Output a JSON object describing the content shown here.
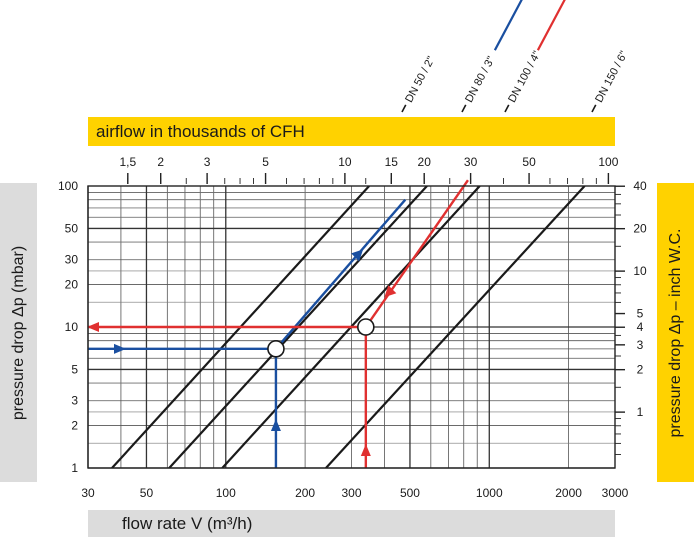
{
  "chart_data": {
    "type": "line",
    "top_axis_title": "airflow in thousands of CFH",
    "xlabel_prefix": "flow rate ",
    "xlabel_symbol": "V",
    "xlabel_suffix": " (m³/h)",
    "ylabel": "pressure drop Δp (mbar)",
    "ylabel_right": "pressure drop Δp – inch W.C.",
    "x_scale": "log",
    "y_scale": "log",
    "xlim": [
      30,
      3000
    ],
    "ylim": [
      1,
      100
    ],
    "x_ticks": [
      {
        "value": 30,
        "label": "30"
      },
      {
        "value": 50,
        "label": "50"
      },
      {
        "value": 100,
        "label": "100"
      },
      {
        "value": 200,
        "label": "200"
      },
      {
        "value": 300,
        "label": "300"
      },
      {
        "value": 500,
        "label": "500"
      },
      {
        "value": 1000,
        "label": "1000"
      },
      {
        "value": 2000,
        "label": "2000"
      },
      {
        "value": 3000,
        "label": "3000"
      }
    ],
    "y_ticks": [
      {
        "value": 1,
        "label": "1"
      },
      {
        "value": 2,
        "label": "2"
      },
      {
        "value": 3,
        "label": "3"
      },
      {
        "value": 5,
        "label": "5"
      },
      {
        "value": 10,
        "label": "10"
      },
      {
        "value": 20,
        "label": "20"
      },
      {
        "value": 30,
        "label": "30"
      },
      {
        "value": 50,
        "label": "50"
      },
      {
        "value": 100,
        "label": "100"
      }
    ],
    "top_ticks": [
      {
        "value": 1.5,
        "label": "1,5"
      },
      {
        "value": 2,
        "label": "2"
      },
      {
        "value": 3,
        "label": "3"
      },
      {
        "value": 5,
        "label": "5"
      },
      {
        "value": 10,
        "label": "10"
      },
      {
        "value": 15,
        "label": "15"
      },
      {
        "value": 20,
        "label": "20"
      },
      {
        "value": 30,
        "label": "30"
      },
      {
        "value": 50,
        "label": "50"
      },
      {
        "value": 100,
        "label": "100"
      }
    ],
    "right_ticks": [
      {
        "value": 1,
        "label": "1"
      },
      {
        "value": 2,
        "label": "2"
      },
      {
        "value": 3,
        "label": "3"
      },
      {
        "value": 4,
        "label": "4"
      },
      {
        "value": 5,
        "label": "5"
      },
      {
        "value": 10,
        "label": "10"
      },
      {
        "value": 20,
        "label": "20"
      },
      {
        "value": 40,
        "label": "40"
      }
    ],
    "series": [
      {
        "name": "DN  50 / 2\"",
        "color": "#1a1a1a",
        "label_color": "#1a1a1a",
        "x": [
          37,
          350
        ],
        "y": [
          1,
          100
        ]
      },
      {
        "name": "DN  80 / 3\"",
        "color": "#1a1a1a",
        "label_color": "#1a4fa0",
        "x": [
          61,
          580
        ],
        "y": [
          1,
          100
        ]
      },
      {
        "name": "DN 100 / 4\"",
        "color": "#1a1a1a",
        "label_color": "#e03030",
        "x": [
          97,
          920
        ],
        "y": [
          1,
          100
        ]
      },
      {
        "name": "DN 150 / 6\"",
        "color": "#1a1a1a",
        "label_color": "#1a1a1a",
        "x": [
          240,
          2300
        ],
        "y": [
          1,
          100
        ]
      }
    ],
    "examples": [
      {
        "color": "#1a4fa0",
        "flow": 155,
        "pressure": 7,
        "extend_to": [
          480,
          80
        ]
      },
      {
        "color": "#e03030",
        "flow": 340,
        "pressure": 10,
        "extend_to": [
          830,
          110
        ]
      }
    ]
  }
}
